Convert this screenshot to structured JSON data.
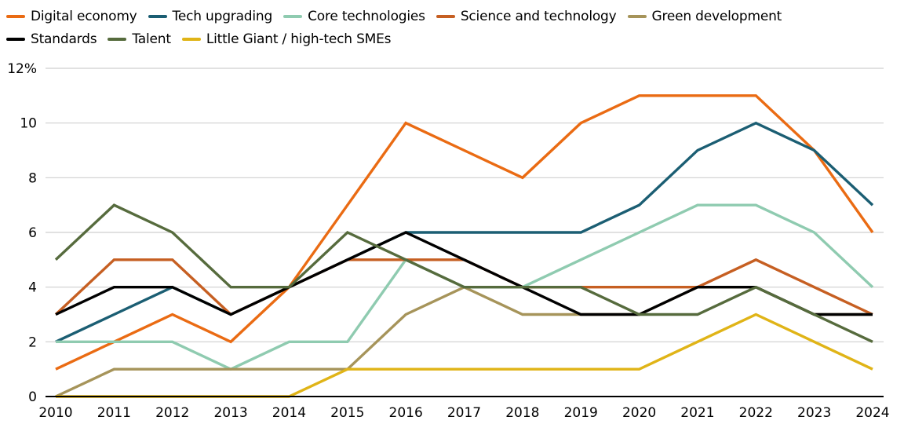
{
  "chart_data": {
    "type": "line",
    "title": "",
    "xlabel": "",
    "ylabel": "",
    "y_unit_suffix": "%",
    "ylim": [
      0,
      12
    ],
    "y_ticks": [
      0,
      2,
      4,
      6,
      8,
      10,
      12
    ],
    "y_tick_labels": [
      "0",
      "2",
      "4",
      "6",
      "8",
      "10",
      "12%"
    ],
    "grid": "horizontal",
    "legend_position": "top-left",
    "x": [
      "2010",
      "2011",
      "2012",
      "2013",
      "2014",
      "2015",
      "2016",
      "2017",
      "2018",
      "2019",
      "2020",
      "2021",
      "2022",
      "2023",
      "2024"
    ],
    "series": [
      {
        "name": "Digital economy",
        "color": "#ea6b13",
        "values": [
          1,
          2,
          3,
          2,
          4,
          7,
          10,
          9,
          8,
          10,
          11,
          11,
          11,
          9,
          6
        ]
      },
      {
        "name": "Tech upgrading",
        "color": "#1b5e73",
        "values": [
          2,
          3,
          4,
          3,
          4,
          5,
          6,
          6,
          6,
          6,
          7,
          9,
          10,
          9,
          7
        ]
      },
      {
        "name": "Core technologies",
        "color": "#8fcbb0",
        "values": [
          2,
          2,
          2,
          1,
          2,
          2,
          5,
          4,
          4,
          5,
          6,
          7,
          7,
          6,
          4
        ]
      },
      {
        "name": "Science and technology",
        "color": "#c65f22",
        "values": [
          3,
          5,
          5,
          3,
          4,
          5,
          5,
          5,
          4,
          4,
          4,
          4,
          5,
          4,
          3
        ]
      },
      {
        "name": "Green development",
        "color": "#a6945a",
        "values": [
          0,
          1,
          1,
          1,
          1,
          1,
          3,
          4,
          3,
          3,
          3,
          4,
          4,
          3,
          3
        ]
      },
      {
        "name": "Standards",
        "color": "#000000",
        "values": [
          3,
          4,
          4,
          3,
          4,
          5,
          6,
          5,
          4,
          3,
          3,
          4,
          4,
          3,
          3
        ]
      },
      {
        "name": "Talent",
        "color": "#566b3d",
        "values": [
          5,
          7,
          6,
          4,
          4,
          6,
          5,
          4,
          4,
          4,
          3,
          3,
          4,
          3,
          2
        ]
      },
      {
        "name": "Little Giant / high-tech SMEs",
        "color": "#e0b417",
        "values": [
          0,
          0,
          0,
          0,
          0,
          1,
          1,
          1,
          1,
          1,
          1,
          2,
          3,
          2,
          1
        ]
      }
    ]
  }
}
